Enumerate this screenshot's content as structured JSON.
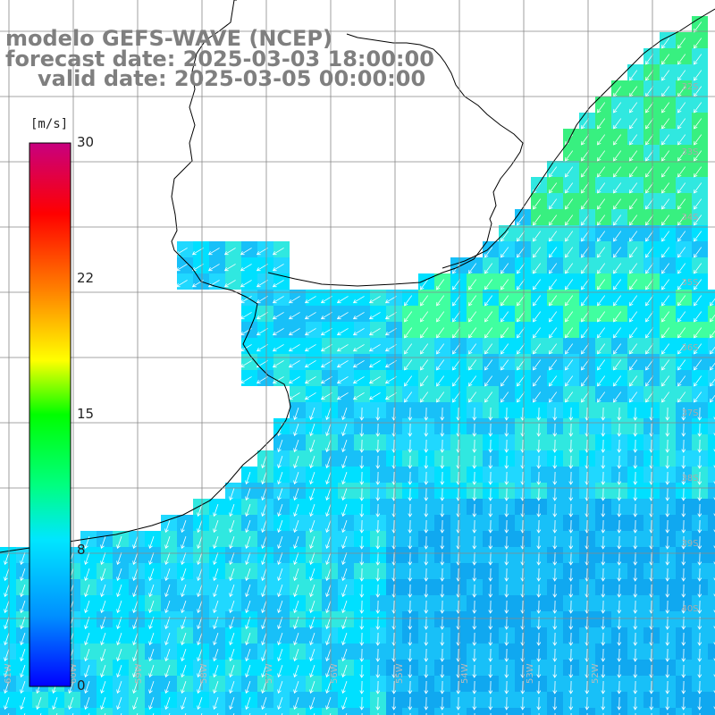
{
  "header": {
    "model_line": "modelo GEFS-WAVE (NCEP)",
    "forecast_line": "forecast date: 2025-03-03 18:00:00",
    "valid_line": "valid date: 2025-03-05 00:00:00"
  },
  "colorbar": {
    "unit": "[m/s]",
    "ticks": [
      "0",
      "8",
      "15",
      "22",
      "30"
    ],
    "tick_values": [
      0,
      8,
      15,
      22,
      30
    ],
    "range": [
      0,
      30
    ],
    "colors": [
      "#0000ff",
      "#0090ff",
      "#00e6ff",
      "#00ff80",
      "#00ff00",
      "#ffff00",
      "#ff8000",
      "#ff0000",
      "#c8007f"
    ]
  },
  "map": {
    "variable": "wind speed and direction",
    "lat_labels": [
      "32S",
      "33S",
      "34S",
      "35S",
      "36S",
      "37S",
      "38S",
      "39S",
      "40S"
    ],
    "lon_labels": [
      "61W",
      "60W",
      "59W",
      "58W",
      "57W",
      "56W",
      "55W",
      "54W",
      "53W",
      "52W"
    ],
    "land_color": "#ffffff",
    "grid_color": "#888888",
    "coast_color": "#000000",
    "arrow_color": "#ffffff"
  }
}
